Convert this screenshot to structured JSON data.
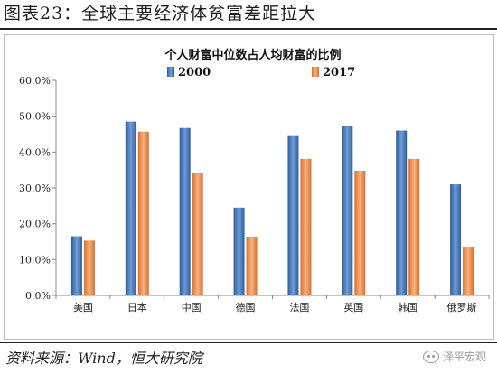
{
  "header": {
    "title": "图表23：全球主要经济体贫富差距拉大"
  },
  "footer": {
    "source": "资料来源：Wind，恒大研究院",
    "watermark": "泽平宏观",
    "watermark_icon": "wechat-icon"
  },
  "chart_data": {
    "type": "bar",
    "title": "个人财富中位数占人均财富的比例",
    "categories": [
      "美国",
      "日本",
      "中国",
      "德国",
      "法国",
      "英国",
      "韩国",
      "俄罗斯"
    ],
    "series": [
      {
        "name": "2000",
        "color": "#4f7fc0",
        "values": [
          16.5,
          48.5,
          46.7,
          24.5,
          44.7,
          47.2,
          46.0,
          31.0
        ]
      },
      {
        "name": "2017",
        "color": "#f09552",
        "values": [
          15.3,
          45.7,
          34.3,
          16.4,
          38.1,
          34.8,
          38.1,
          13.6
        ]
      }
    ],
    "ylim": [
      0,
      60
    ],
    "yticks": [
      "0.0%",
      "10.0%",
      "20.0%",
      "30.0%",
      "40.0%",
      "50.0%",
      "60.0%"
    ],
    "ytick_values": [
      0,
      10,
      20,
      30,
      40,
      50,
      60
    ],
    "legend": "top-center",
    "grid": false
  }
}
